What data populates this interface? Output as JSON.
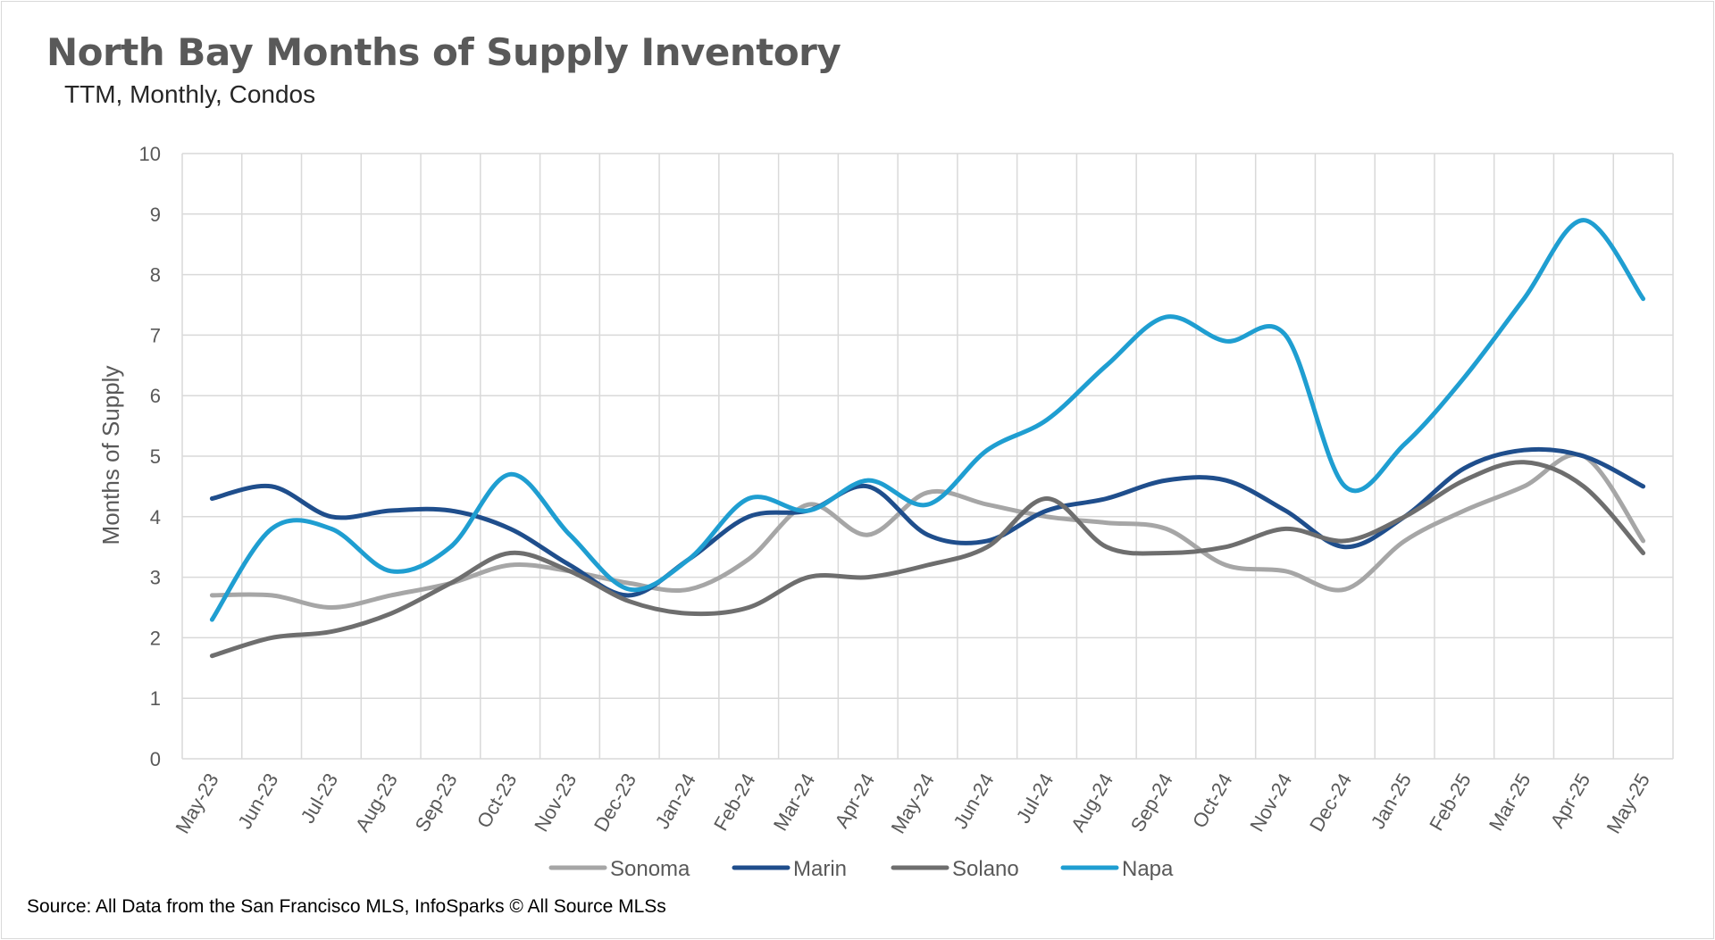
{
  "chart_data": {
    "type": "line",
    "title": "North Bay Months of Supply Inventory",
    "subtitle": "TTM, Monthly, Condos",
    "ylabel": "Months of Supply",
    "xlabel": "",
    "ylim": [
      0,
      10
    ],
    "yticks": [
      0,
      1,
      2,
      3,
      4,
      5,
      6,
      7,
      8,
      9,
      10
    ],
    "grid": true,
    "legend_position": "bottom",
    "categories": [
      "May-23",
      "Jun-23",
      "Jul-23",
      "Aug-23",
      "Sep-23",
      "Oct-23",
      "Nov-23",
      "Dec-23",
      "Jan-24",
      "Feb-24",
      "Mar-24",
      "Apr-24",
      "May-24",
      "Jun-24",
      "Jul-24",
      "Aug-24",
      "Sep-24",
      "Oct-24",
      "Nov-24",
      "Dec-24",
      "Jan-25",
      "Feb-25",
      "Mar-25",
      "Apr-25",
      "May-25"
    ],
    "series": [
      {
        "name": "Sonoma",
        "color": "#a6a6a6",
        "values": [
          2.7,
          2.7,
          2.5,
          2.7,
          2.9,
          3.2,
          3.1,
          2.9,
          2.8,
          3.3,
          4.2,
          3.7,
          4.4,
          4.2,
          4.0,
          3.9,
          3.8,
          3.2,
          3.1,
          2.8,
          3.6,
          4.1,
          4.5,
          5.0,
          3.6
        ]
      },
      {
        "name": "Marin",
        "color": "#1f4e8c",
        "values": [
          4.3,
          4.5,
          4.0,
          4.1,
          4.1,
          3.8,
          3.2,
          2.7,
          3.3,
          4.0,
          4.1,
          4.5,
          3.7,
          3.6,
          4.1,
          4.3,
          4.6,
          4.6,
          4.1,
          3.5,
          4.0,
          4.8,
          5.1,
          5.0,
          4.5
        ]
      },
      {
        "name": "Solano",
        "color": "#6e6e6e",
        "values": [
          1.7,
          2.0,
          2.1,
          2.4,
          2.9,
          3.4,
          3.1,
          2.6,
          2.4,
          2.5,
          3.0,
          3.0,
          3.2,
          3.5,
          4.3,
          3.5,
          3.4,
          3.5,
          3.8,
          3.6,
          4.0,
          4.6,
          4.9,
          4.5,
          3.4
        ]
      },
      {
        "name": "Napa",
        "color": "#1f9ed1",
        "values": [
          2.3,
          3.8,
          3.8,
          3.1,
          3.5,
          4.7,
          3.7,
          2.8,
          3.3,
          4.3,
          4.1,
          4.6,
          4.2,
          5.1,
          5.6,
          6.5,
          7.3,
          6.9,
          7.0,
          4.5,
          5.2,
          6.3,
          7.6,
          8.9,
          7.6
        ]
      }
    ]
  },
  "source_note": "Source: All Data from the San Francisco MLS, InfoSparks © All Source MLSs"
}
